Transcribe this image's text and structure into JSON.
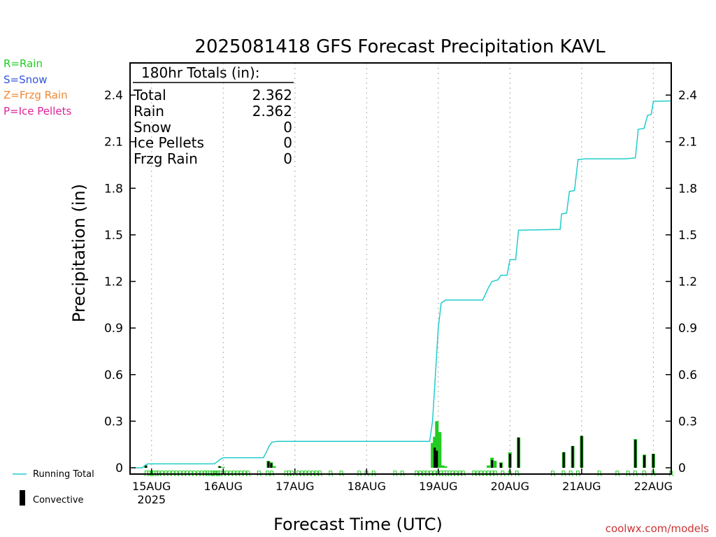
{
  "chart_data": {
    "type": "bar",
    "title": "2025081418 GFS Forecast Precipitation KAVL",
    "xlabel": "Forecast Time (UTC)",
    "ylabel": "Precipitation (in)",
    "ylim": [
      0,
      2.55
    ],
    "y_ticks": [
      "0",
      "0.3",
      "0.6",
      "0.9",
      "1.2",
      "1.5",
      "1.8",
      "2.1",
      "2.4"
    ],
    "x_range_days": [
      14.7,
      22.25
    ],
    "x_ticks": [
      {
        "day": 15,
        "label": "15AUG",
        "sublabel": "2025"
      },
      {
        "day": 16,
        "label": "16AUG",
        "sublabel": ""
      },
      {
        "day": 17,
        "label": "17AUG",
        "sublabel": ""
      },
      {
        "day": 18,
        "label": "18AUG",
        "sublabel": ""
      },
      {
        "day": 19,
        "label": "19AUG",
        "sublabel": ""
      },
      {
        "day": 20,
        "label": "20AUG",
        "sublabel": ""
      },
      {
        "day": 21,
        "label": "21AUG",
        "sublabel": ""
      },
      {
        "day": 22,
        "label": "22AUG",
        "sublabel": ""
      }
    ],
    "grid": "vertical dotted at each day",
    "legend": {
      "precip_types": [
        {
          "text": "R=Rain",
          "color": "#22cc22"
        },
        {
          "text": "S=Snow",
          "color": "#3355dd"
        },
        {
          "text": "Z=Frzg Rain",
          "color": "#ee8833"
        },
        {
          "text": "P=Ice Pellets",
          "color": "#dd2299"
        }
      ],
      "running_total": {
        "text": "Running Total",
        "color": "#22cccc"
      },
      "convective": {
        "text": "Convective",
        "color": "#000000"
      }
    },
    "totals_box": {
      "header": "180hr Totals (in):",
      "rows": [
        {
          "label": "Total",
          "value": "2.362"
        },
        {
          "label": "Rain",
          "value": "2.362"
        },
        {
          "label": "Snow",
          "value": "0"
        },
        {
          "label": "Ice Pellets",
          "value": "0"
        },
        {
          "label": "Frzg Rain",
          "value": "0"
        }
      ]
    },
    "series": [
      {
        "name": "Running Total",
        "type": "line",
        "points": [
          [
            14.75,
            0
          ],
          [
            14.87,
            0
          ],
          [
            14.92,
            0.02
          ],
          [
            14.95,
            0.025
          ],
          [
            15.875,
            0.025
          ],
          [
            15.92,
            0.04
          ],
          [
            15.96,
            0.055
          ],
          [
            16.0,
            0.065
          ],
          [
            16.56,
            0.065
          ],
          [
            16.6,
            0.1
          ],
          [
            16.64,
            0.14
          ],
          [
            16.68,
            0.165
          ],
          [
            16.75,
            0.17
          ],
          [
            18.88,
            0.17
          ],
          [
            18.92,
            0.3
          ],
          [
            18.96,
            0.6
          ],
          [
            19.0,
            0.9
          ],
          [
            19.04,
            1.06
          ],
          [
            19.1,
            1.08
          ],
          [
            19.62,
            1.08
          ],
          [
            19.7,
            1.16
          ],
          [
            19.75,
            1.2
          ],
          [
            19.83,
            1.21
          ],
          [
            19.875,
            1.24
          ],
          [
            19.96,
            1.24
          ],
          [
            20.0,
            1.34
          ],
          [
            20.08,
            1.34
          ],
          [
            20.12,
            1.53
          ],
          [
            20.7,
            1.535
          ],
          [
            20.72,
            1.635
          ],
          [
            20.79,
            1.64
          ],
          [
            20.83,
            1.78
          ],
          [
            20.9,
            1.785
          ],
          [
            20.95,
            1.985
          ],
          [
            21.05,
            1.99
          ],
          [
            21.6,
            1.99
          ],
          [
            21.75,
            1.995
          ],
          [
            21.79,
            2.18
          ],
          [
            21.87,
            2.185
          ],
          [
            21.92,
            2.27
          ],
          [
            21.97,
            2.275
          ],
          [
            22.0,
            2.36
          ],
          [
            22.25,
            2.362
          ]
        ]
      },
      {
        "name": "Rain",
        "type": "bar",
        "bars": [
          [
            14.92,
            0.015
          ],
          [
            15.95,
            0.01
          ],
          [
            16.0,
            0.005
          ],
          [
            16.63,
            0.045
          ],
          [
            16.67,
            0.035
          ],
          [
            16.71,
            0.01
          ],
          [
            18.92,
            0.16
          ],
          [
            18.95,
            0.2
          ],
          [
            18.98,
            0.3
          ],
          [
            19.02,
            0.23
          ],
          [
            19.06,
            0.015
          ],
          [
            19.1,
            0.01
          ],
          [
            19.7,
            0.015
          ],
          [
            19.75,
            0.065
          ],
          [
            19.79,
            0.045
          ],
          [
            19.875,
            0.035
          ],
          [
            20.0,
            0.1
          ],
          [
            20.12,
            0.195
          ],
          [
            20.75,
            0.1
          ],
          [
            20.875,
            0.14
          ],
          [
            21.0,
            0.205
          ],
          [
            21.75,
            0.185
          ],
          [
            21.875,
            0.085
          ],
          [
            22.0,
            0.09
          ]
        ]
      },
      {
        "name": "Convective",
        "type": "bar",
        "bars": [
          [
            14.92,
            0.015
          ],
          [
            15.95,
            0.01
          ],
          [
            16.63,
            0.04
          ],
          [
            16.67,
            0.03
          ],
          [
            18.95,
            0.13
          ],
          [
            18.98,
            0.11
          ],
          [
            19.75,
            0.05
          ],
          [
            19.875,
            0.03
          ],
          [
            20.0,
            0.09
          ],
          [
            20.12,
            0.195
          ],
          [
            20.75,
            0.1
          ],
          [
            20.875,
            0.14
          ],
          [
            21.0,
            0.205
          ],
          [
            21.75,
            0.18
          ],
          [
            21.875,
            0.08
          ],
          [
            22.0,
            0.09
          ]
        ]
      }
    ],
    "type_marker_letter": "R",
    "type_markers": [
      14.93,
      14.97,
      15.0,
      15.03,
      15.07,
      15.1,
      15.15,
      15.2,
      15.25,
      15.3,
      15.35,
      15.4,
      15.45,
      15.5,
      15.55,
      15.6,
      15.65,
      15.7,
      15.75,
      15.78,
      15.82,
      15.85,
      15.88,
      15.9,
      15.93,
      15.96,
      16.0,
      16.05,
      16.1,
      16.15,
      16.2,
      16.25,
      16.3,
      16.35,
      16.5,
      16.62,
      16.68,
      16.88,
      16.92,
      16.96,
      17.05,
      17.1,
      17.15,
      17.2,
      17.25,
      17.3,
      17.35,
      17.5,
      17.65,
      17.9,
      18.0,
      18.1,
      18.4,
      18.5,
      18.7,
      18.75,
      18.8,
      18.85,
      18.9,
      18.95,
      19.0,
      19.04,
      19.08,
      19.12,
      19.16,
      19.2,
      19.25,
      19.3,
      19.35,
      19.5,
      19.55,
      19.6,
      19.65,
      19.7,
      19.75,
      19.8,
      19.9,
      20.0,
      20.1,
      20.6,
      20.75,
      20.85,
      20.95,
      21.25,
      21.5,
      21.65,
      21.75,
      21.875,
      22.0,
      22.25
    ]
  },
  "footer": {
    "credit": "coolwx.com/models"
  }
}
